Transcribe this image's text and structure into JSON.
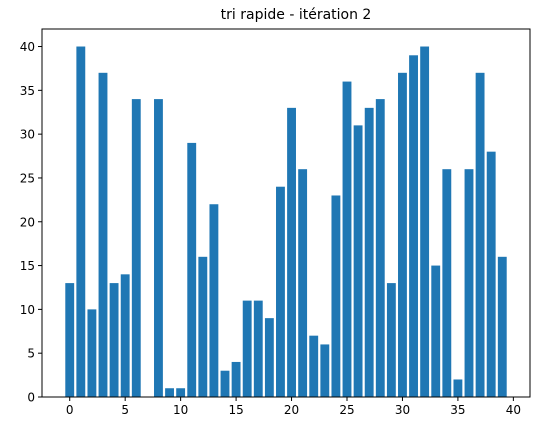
{
  "chart_data": {
    "type": "bar",
    "title": "tri rapide - itération 2",
    "xlabel": "",
    "ylabel": "",
    "x": [
      0,
      1,
      2,
      3,
      4,
      5,
      6,
      7,
      8,
      9,
      10,
      11,
      12,
      13,
      14,
      15,
      16,
      17,
      18,
      19,
      20,
      21,
      22,
      23,
      24,
      25,
      26,
      27,
      28,
      29,
      30,
      31,
      32,
      33,
      34,
      35,
      36,
      37,
      38,
      39
    ],
    "values": [
      13,
      40,
      10,
      37,
      13,
      14,
      34,
      0,
      34,
      1,
      1,
      29,
      16,
      22,
      3,
      4,
      11,
      11,
      9,
      24,
      33,
      26,
      7,
      6,
      23,
      36,
      31,
      33,
      34,
      13,
      37,
      39,
      40,
      15,
      26,
      2,
      26,
      37,
      28,
      16
    ],
    "xlim": [
      -2.5,
      41.5
    ],
    "ylim": [
      0,
      42
    ],
    "xticks": [
      0,
      5,
      10,
      15,
      20,
      25,
      30,
      35,
      40
    ],
    "yticks": [
      0,
      5,
      10,
      15,
      20,
      25,
      30,
      35,
      40
    ],
    "bar_color": "#1f77b4",
    "grid": false,
    "legend": "none"
  }
}
